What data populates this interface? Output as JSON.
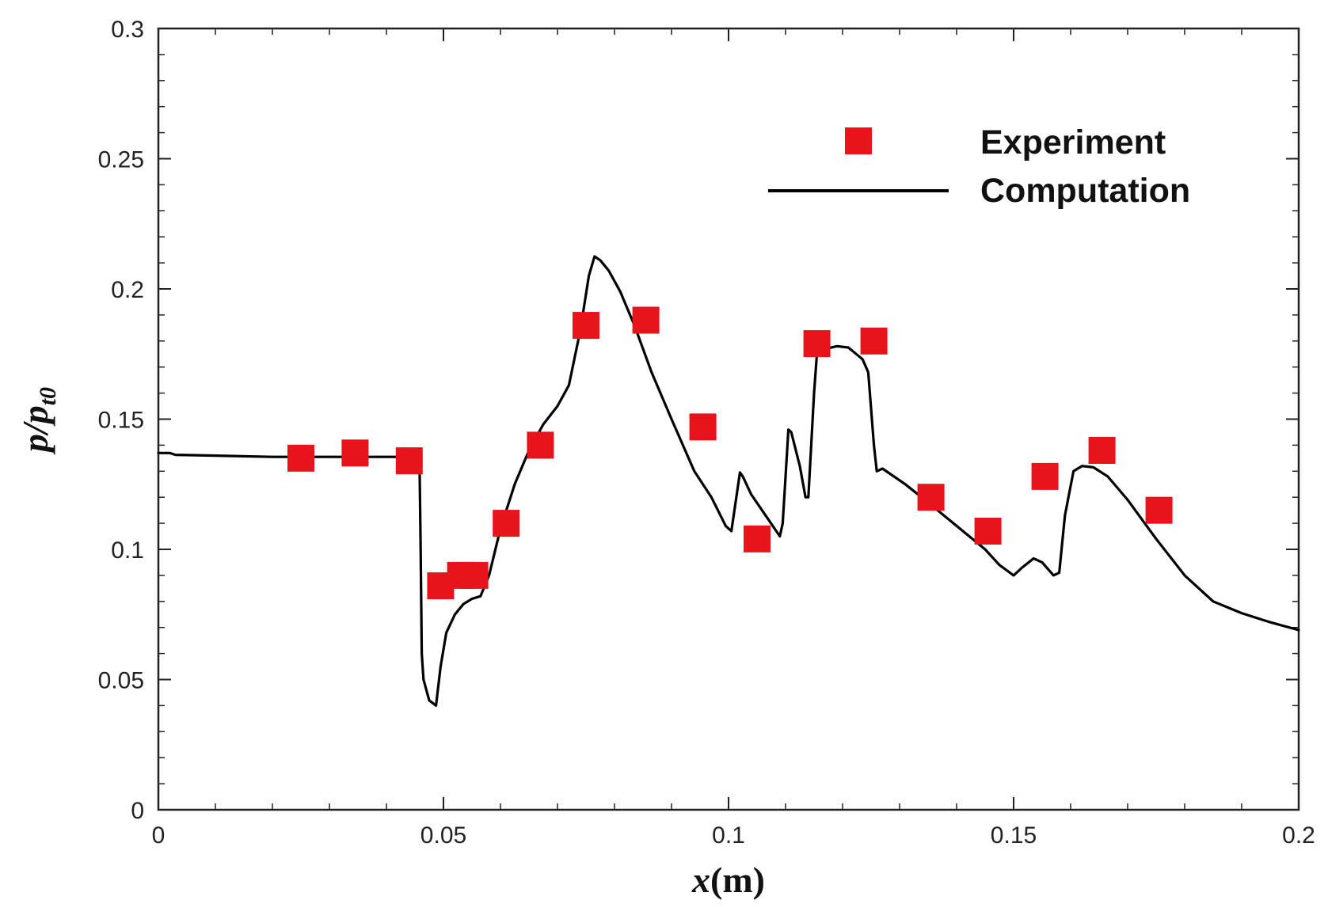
{
  "chart_data": {
    "type": "scatter",
    "xlabel": {
      "var": "x",
      "unit": "(m)"
    },
    "ylabel": {
      "var": "p/p",
      "sub": "t0"
    },
    "xlim": [
      0,
      0.2
    ],
    "ylim": [
      0,
      0.3
    ],
    "x_ticks": [
      0,
      0.05,
      0.1,
      0.15,
      0.2
    ],
    "x_tick_labels": [
      "0",
      "0.05",
      "0.1",
      "0.15",
      "0.2"
    ],
    "y_ticks": [
      0,
      0.05,
      0.1,
      0.15,
      0.2,
      0.25,
      0.3
    ],
    "y_tick_labels": [
      "0",
      "0.05",
      "0.1",
      "0.15",
      "0.2",
      "0.25",
      "0.3"
    ],
    "grid": false,
    "legend_position": "top-right",
    "series": [
      {
        "name": "Experiment",
        "kind": "markers",
        "marker": "square",
        "color": "#e8141c",
        "points": [
          [
            0.025,
            0.135
          ],
          [
            0.0345,
            0.137
          ],
          [
            0.044,
            0.134
          ],
          [
            0.0495,
            0.086
          ],
          [
            0.053,
            0.09
          ],
          [
            0.0555,
            0.09
          ],
          [
            0.061,
            0.11
          ],
          [
            0.067,
            0.14
          ],
          [
            0.075,
            0.186
          ],
          [
            0.0855,
            0.188
          ],
          [
            0.0955,
            0.147
          ],
          [
            0.105,
            0.104
          ],
          [
            0.1155,
            0.179
          ],
          [
            0.1255,
            0.18
          ],
          [
            0.1355,
            0.12
          ],
          [
            0.1455,
            0.107
          ],
          [
            0.1555,
            0.128
          ],
          [
            0.1655,
            0.138
          ],
          [
            0.1755,
            0.115
          ]
        ]
      },
      {
        "name": "Computation",
        "kind": "line",
        "color": "#000000",
        "points": [
          [
            0,
            0.137
          ],
          [
            0.002,
            0.137
          ],
          [
            0.003,
            0.1363
          ],
          [
            0.01,
            0.136
          ],
          [
            0.02,
            0.1355
          ],
          [
            0.035,
            0.1355
          ],
          [
            0.0455,
            0.1355
          ],
          [
            0.0458,
            0.133
          ],
          [
            0.046,
            0.1
          ],
          [
            0.0462,
            0.06
          ],
          [
            0.0465,
            0.05
          ],
          [
            0.0475,
            0.042
          ],
          [
            0.0487,
            0.04
          ],
          [
            0.0495,
            0.055
          ],
          [
            0.0505,
            0.068
          ],
          [
            0.052,
            0.075
          ],
          [
            0.0535,
            0.079
          ],
          [
            0.055,
            0.081
          ],
          [
            0.0565,
            0.082
          ],
          [
            0.058,
            0.09
          ],
          [
            0.06,
            0.108
          ],
          [
            0.0625,
            0.125
          ],
          [
            0.065,
            0.138
          ],
          [
            0.0675,
            0.148
          ],
          [
            0.07,
            0.155
          ],
          [
            0.072,
            0.163
          ],
          [
            0.074,
            0.184
          ],
          [
            0.0755,
            0.205
          ],
          [
            0.0765,
            0.2125
          ],
          [
            0.0775,
            0.211
          ],
          [
            0.079,
            0.207
          ],
          [
            0.081,
            0.199
          ],
          [
            0.0835,
            0.186
          ],
          [
            0.0865,
            0.168
          ],
          [
            0.09,
            0.15
          ],
          [
            0.094,
            0.13
          ],
          [
            0.097,
            0.12
          ],
          [
            0.0995,
            0.109
          ],
          [
            0.1005,
            0.107
          ],
          [
            0.1015,
            0.122
          ],
          [
            0.102,
            0.1295
          ],
          [
            0.1025,
            0.128
          ],
          [
            0.104,
            0.121
          ],
          [
            0.1065,
            0.113
          ],
          [
            0.109,
            0.105
          ],
          [
            0.1095,
            0.11
          ],
          [
            0.1105,
            0.146
          ],
          [
            0.111,
            0.145
          ],
          [
            0.1125,
            0.132
          ],
          [
            0.1135,
            0.12
          ],
          [
            0.114,
            0.12
          ],
          [
            0.115,
            0.16
          ],
          [
            0.1155,
            0.175
          ],
          [
            0.117,
            0.177
          ],
          [
            0.119,
            0.178
          ],
          [
            0.121,
            0.1775
          ],
          [
            0.1235,
            0.173
          ],
          [
            0.1245,
            0.168
          ],
          [
            0.1255,
            0.14
          ],
          [
            0.126,
            0.13
          ],
          [
            0.127,
            0.131
          ],
          [
            0.131,
            0.125
          ],
          [
            0.135,
            0.118
          ],
          [
            0.14,
            0.109
          ],
          [
            0.145,
            0.1
          ],
          [
            0.1475,
            0.094
          ],
          [
            0.15,
            0.09
          ],
          [
            0.1515,
            0.093
          ],
          [
            0.1535,
            0.0965
          ],
          [
            0.155,
            0.095
          ],
          [
            0.157,
            0.09
          ],
          [
            0.158,
            0.091
          ],
          [
            0.159,
            0.113
          ],
          [
            0.1605,
            0.13
          ],
          [
            0.162,
            0.132
          ],
          [
            0.164,
            0.1315
          ],
          [
            0.1665,
            0.128
          ],
          [
            0.17,
            0.119
          ],
          [
            0.175,
            0.104
          ],
          [
            0.18,
            0.09
          ],
          [
            0.185,
            0.08
          ],
          [
            0.19,
            0.0755
          ],
          [
            0.195,
            0.072
          ],
          [
            0.2,
            0.069
          ]
        ]
      }
    ],
    "colors": {
      "marker": "#e8141c",
      "line": "#000000",
      "axis": "#222222"
    }
  }
}
